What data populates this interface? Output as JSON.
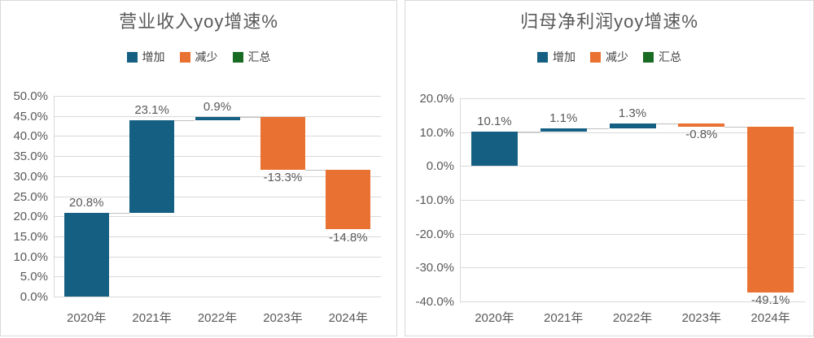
{
  "colors": {
    "increase": "#156082",
    "decrease": "#E97132",
    "total": "#196B24",
    "grid": "#D9D9D9",
    "axis_line": "#D9D9D9",
    "connector": "#BFBFBF",
    "text": "#595959",
    "card_border": "#D9D9D9",
    "background": "#FFFFFF"
  },
  "chart_data": [
    {
      "type": "bar",
      "subtype": "waterfall",
      "title": "营业收入yoy增速%",
      "legend": [
        {
          "label": "增加",
          "role": "increase"
        },
        {
          "label": "减少",
          "role": "decrease"
        },
        {
          "label": "汇总",
          "role": "total"
        }
      ],
      "categories": [
        "2020年",
        "2021年",
        "2022年",
        "2023年",
        "2024年"
      ],
      "values": [
        20.8,
        23.1,
        0.9,
        -13.3,
        -14.8
      ],
      "xlabel": "",
      "ylabel": "",
      "ylim": [
        0,
        50
      ],
      "grid": true,
      "legend_position": "top",
      "y_axis": {
        "ticks": [
          {
            "label": "50.0%",
            "value": 50
          },
          {
            "label": "45.0%",
            "value": 45
          },
          {
            "label": "40.0%",
            "value": 40
          },
          {
            "label": "35.0%",
            "value": 35
          },
          {
            "label": "30.0%",
            "value": 30
          },
          {
            "label": "25.0%",
            "value": 25
          },
          {
            "label": "20.0%",
            "value": 20
          },
          {
            "label": "15.0%",
            "value": 15
          },
          {
            "label": "10.0%",
            "value": 10
          },
          {
            "label": "5.0%",
            "value": 5
          },
          {
            "label": "0.0%",
            "value": 0
          }
        ]
      },
      "bars": [
        {
          "category": "2020年",
          "label": "20.8%",
          "value": 20.8,
          "start": 0,
          "end": 20.8,
          "role": "increase"
        },
        {
          "category": "2021年",
          "label": "23.1%",
          "value": 23.1,
          "start": 20.8,
          "end": 43.9,
          "role": "increase"
        },
        {
          "category": "2022年",
          "label": "0.9%",
          "value": 0.9,
          "start": 43.9,
          "end": 44.8,
          "role": "increase"
        },
        {
          "category": "2023年",
          "label": "-13.3%",
          "value": -13.3,
          "start": 44.8,
          "end": 31.5,
          "role": "decrease"
        },
        {
          "category": "2024年",
          "label": "-14.8%",
          "value": -14.8,
          "start": 31.5,
          "end": 16.7,
          "role": "decrease"
        }
      ]
    },
    {
      "type": "bar",
      "subtype": "waterfall",
      "title": "归母净利润yoy增速%",
      "legend": [
        {
          "label": "增加",
          "role": "increase"
        },
        {
          "label": "减少",
          "role": "decrease"
        },
        {
          "label": "汇总",
          "role": "total"
        }
      ],
      "categories": [
        "2020年",
        "2021年",
        "2022年",
        "2023年",
        "2024年"
      ],
      "values": [
        10.1,
        1.1,
        1.3,
        -0.8,
        -49.1
      ],
      "xlabel": "",
      "ylabel": "",
      "ylim": [
        -40,
        20
      ],
      "grid": true,
      "legend_position": "top",
      "y_axis": {
        "ticks": [
          {
            "label": "20.0%",
            "value": 20
          },
          {
            "label": "10.0%",
            "value": 10
          },
          {
            "label": "0.0%",
            "value": 0
          },
          {
            "label": "-10.0%",
            "value": -10
          },
          {
            "label": "-20.0%",
            "value": -20
          },
          {
            "label": "-30.0%",
            "value": -30
          },
          {
            "label": "-40.0%",
            "value": -40
          }
        ]
      },
      "bars": [
        {
          "category": "2020年",
          "label": "10.1%",
          "value": 10.1,
          "start": 0,
          "end": 10.1,
          "role": "increase"
        },
        {
          "category": "2021年",
          "label": "1.1%",
          "value": 1.1,
          "start": 10.1,
          "end": 11.2,
          "role": "increase"
        },
        {
          "category": "2022年",
          "label": "1.3%",
          "value": 1.3,
          "start": 11.2,
          "end": 12.5,
          "role": "increase"
        },
        {
          "category": "2023年",
          "label": "-0.8%",
          "value": -0.8,
          "start": 12.5,
          "end": 11.7,
          "role": "decrease"
        },
        {
          "category": "2024年",
          "label": "-49.1%",
          "value": -49.1,
          "start": 11.7,
          "end": -37.4,
          "role": "decrease"
        }
      ]
    }
  ]
}
